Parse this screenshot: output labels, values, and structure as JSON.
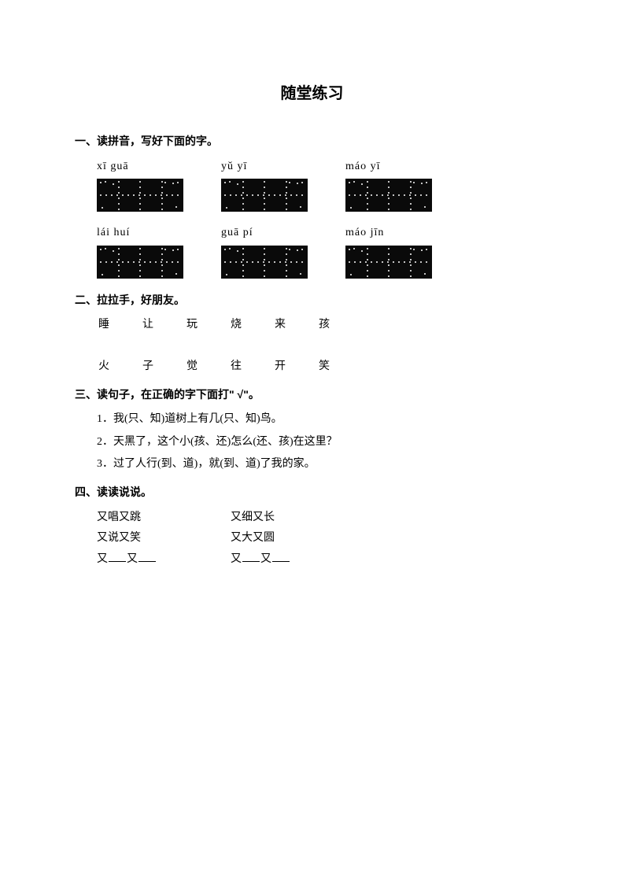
{
  "title": "随堂练习",
  "section1": {
    "heading": "一、读拼音，写好下面的字。",
    "row1": {
      "p1": "xī  guā",
      "p2": "yǔ  yī",
      "p3": "máo  yī"
    },
    "row2": {
      "p1": "lái  huí",
      "p2": "guā  pí",
      "p3": "máo  jīn"
    }
  },
  "section2": {
    "heading": "二、拉拉手，好朋友。",
    "top": {
      "c1": "睡",
      "c2": "让",
      "c3": "玩",
      "c4": "烧",
      "c5": "来",
      "c6": "孩"
    },
    "bottom": {
      "c1": "火",
      "c2": "子",
      "c3": "觉",
      "c4": "往",
      "c5": "开",
      "c6": "笑"
    }
  },
  "section3": {
    "heading": "三、读句子，在正确的字下面打\" √\"。",
    "q1": "1．我(只、知)道树上有几(只、知)鸟。",
    "q2": "2．天黑了，这个小(孩、还)怎么(还、孩)在这里？",
    "q3": "3．过了人行(到、道)，就(到、道)了我的家。"
  },
  "section4": {
    "heading": "四、读读说说。",
    "r1a": "又唱又跳",
    "r1b": "又细又长",
    "r2a": "又说又笑",
    "r2b": "又大又圆",
    "r3a_pre": "又",
    "r3a_mid": "又",
    "r3b_pre": "又",
    "r3b_mid": "又"
  }
}
